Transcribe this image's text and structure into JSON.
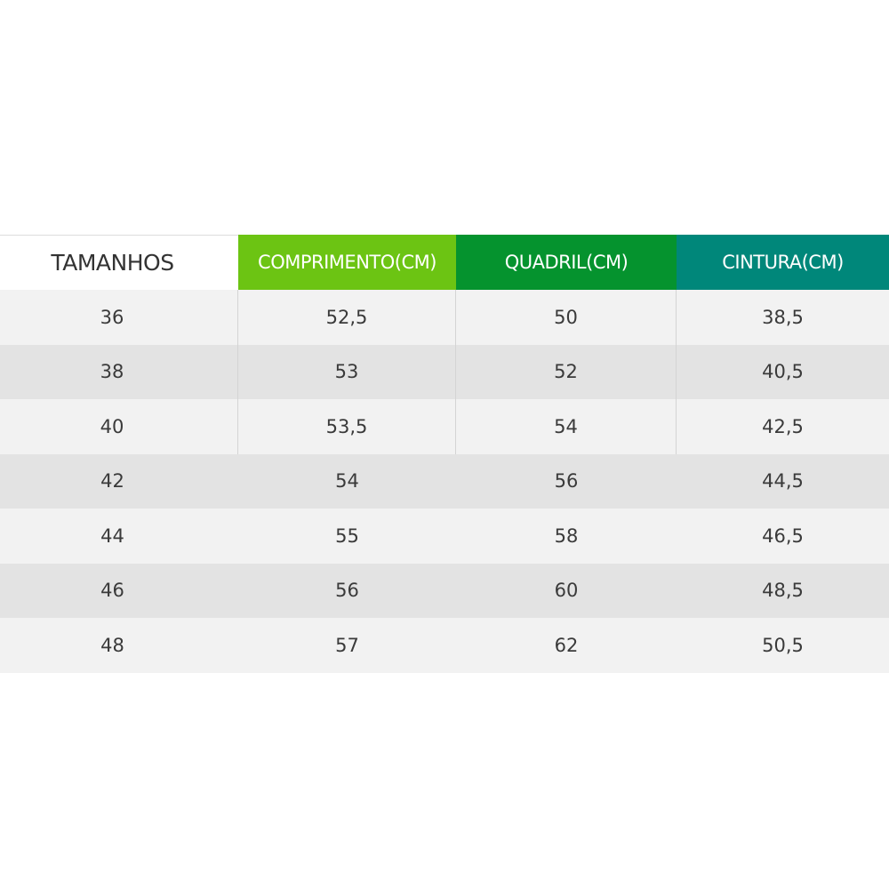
{
  "colors": {
    "comprimento": "#6cc413",
    "quadril": "#05932e",
    "cintura": "#00877a"
  },
  "headers": [
    "TAMANHOS",
    "COMPRIMENTO(CM)",
    "QUADRIL(CM)",
    "CINTURA(CM)"
  ],
  "rows": [
    [
      "36",
      "52,5",
      "50",
      "38,5"
    ],
    [
      "38",
      "53",
      "52",
      "40,5"
    ],
    [
      "40",
      "53,5",
      "54",
      "42,5"
    ],
    [
      "42",
      "54",
      "56",
      "44,5"
    ],
    [
      "44",
      "55",
      "58",
      "46,5"
    ],
    [
      "46",
      "56",
      "60",
      "48,5"
    ],
    [
      "48",
      "57",
      "62",
      "50,5"
    ]
  ]
}
